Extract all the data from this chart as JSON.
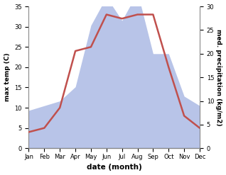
{
  "months": [
    "Jan",
    "Feb",
    "Mar",
    "Apr",
    "May",
    "Jun",
    "Jul",
    "Aug",
    "Sep",
    "Oct",
    "Nov",
    "Dec"
  ],
  "temperature": [
    4,
    5,
    10,
    24,
    25,
    33,
    32,
    33,
    33,
    20,
    8,
    5
  ],
  "precipitation": [
    8,
    9,
    10,
    13,
    26,
    32,
    27,
    33,
    20,
    20,
    11,
    9
  ],
  "temp_color": "#c0504d",
  "precip_color_fill": "#b8c4e8",
  "temp_ylim": [
    0,
    35
  ],
  "precip_ylim": [
    0,
    30
  ],
  "temp_yticks": [
    0,
    5,
    10,
    15,
    20,
    25,
    30,
    35
  ],
  "precip_yticks": [
    0,
    5,
    10,
    15,
    20,
    25,
    30
  ],
  "ylabel_left": "max temp (C)",
  "ylabel_right": "med. precipitation (kg/m2)",
  "xlabel": "date (month)",
  "figwidth": 3.18,
  "figheight": 2.47,
  "dpi": 100
}
